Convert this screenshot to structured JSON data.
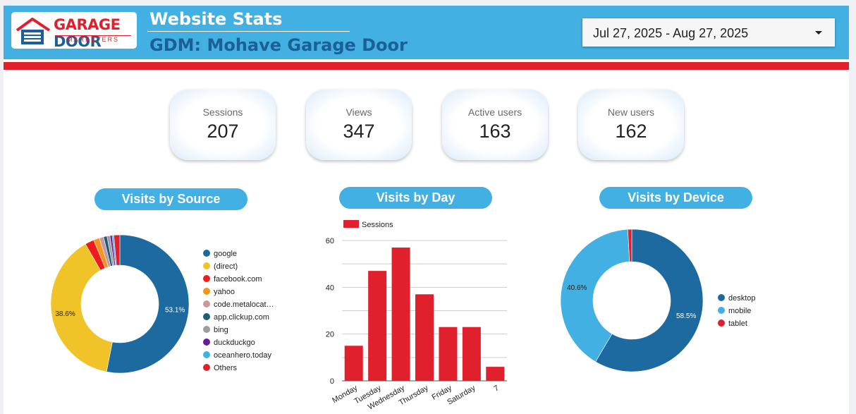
{
  "header": {
    "logo_word1": "GARAGE",
    "logo_word2": "DOOR",
    "logo_sub": "MARKETERS",
    "title": "Website Stats",
    "subtitle": "GDM: Mohave Garage Door",
    "date_range": "Jul 27, 2025 - Aug 27, 2025"
  },
  "scorecards": [
    {
      "label": "Sessions",
      "value": "207"
    },
    {
      "label": "Views",
      "value": "347"
    },
    {
      "label": "Active users",
      "value": "163"
    },
    {
      "label": "New users",
      "value": "162"
    }
  ],
  "colors": {
    "header_blue": "#42b0e3",
    "accent_red": "#e0202d",
    "dark_blue": "#1c6aa0"
  },
  "chart_data": [
    {
      "type": "pie",
      "title": "Visits by Source",
      "labels": [
        "google",
        "(direct)",
        "facebook.com",
        "yahoo",
        "code.metalocat…",
        "app.clickup.com",
        "bing",
        "duckduckgo",
        "oceanhero.today",
        "Others"
      ],
      "values": [
        53.1,
        38.6,
        2.1,
        1.4,
        1.0,
        0.8,
        0.7,
        0.5,
        0.4,
        1.4
      ],
      "value_labels": [
        "53.1%",
        "38.6%",
        "",
        "",
        "",
        "",
        "",
        "",
        "",
        ""
      ],
      "colors": [
        "#1c6aa0",
        "#f0c328",
        "#ee1c1c",
        "#f7941d",
        "#c49aa0",
        "#1f5b7a",
        "#9e9e9e",
        "#6a1b9a",
        "#42b0e3",
        "#e0202d"
      ],
      "legend": "right"
    },
    {
      "type": "bar",
      "title": "Visits by Day",
      "legend_label": "Sessions",
      "categories": [
        "Monday",
        "Tuesday",
        "Wednesday",
        "Thursday",
        "Friday",
        "Saturday",
        "7"
      ],
      "values": [
        15,
        47,
        57,
        37,
        23,
        23,
        6
      ],
      "yticks": [
        0,
        20,
        40,
        60
      ],
      "ylim": [
        0,
        60
      ],
      "color": "#e0202d"
    },
    {
      "type": "pie",
      "title": "Visits by Device",
      "labels": [
        "desktop",
        "mobile",
        "tablet"
      ],
      "values": [
        58.5,
        40.6,
        0.9
      ],
      "value_labels": [
        "58.5%",
        "40.6%",
        ""
      ],
      "colors": [
        "#1c6aa0",
        "#42b0e3",
        "#e0202d"
      ],
      "legend": "right"
    }
  ]
}
